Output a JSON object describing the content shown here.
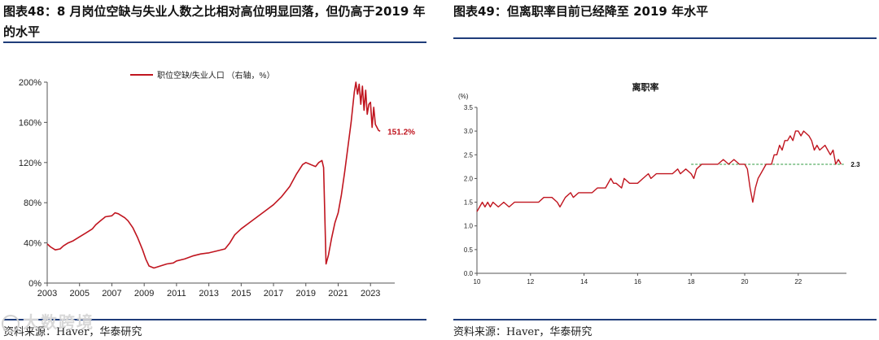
{
  "left": {
    "title_prefix": "图表48：",
    "title_text": "8 月岗位空缺与失业人数之比相对高位明显回落，但仍高于2019 年的水平",
    "source": "资料来源：Haver，华泰研究",
    "chart_data": {
      "type": "line",
      "legend": [
        "职位空缺/失业人口 （右轴，%）"
      ],
      "x_ticks": [
        "2003",
        "2005",
        "2007",
        "2009",
        "2011",
        "2013",
        "2015",
        "2017",
        "2019",
        "2021",
        "2023"
      ],
      "y_ticks": [
        "0%",
        "40%",
        "80%",
        "120%",
        "160%",
        "200%"
      ],
      "ylim": [
        0,
        200
      ],
      "xlim": [
        2003,
        2024.5
      ],
      "end_label": "151.2%",
      "series": [
        {
          "name": "职位空缺/失业人口 （右轴，%）",
          "color": "#c0151f",
          "points": [
            [
              2003.0,
              39
            ],
            [
              2003.2,
              36
            ],
            [
              2003.5,
              33
            ],
            [
              2003.8,
              34
            ],
            [
              2004.0,
              37
            ],
            [
              2004.3,
              40
            ],
            [
              2004.6,
              42
            ],
            [
              2005.0,
              46
            ],
            [
              2005.4,
              50
            ],
            [
              2005.8,
              54
            ],
            [
              2006.0,
              58
            ],
            [
              2006.3,
              62
            ],
            [
              2006.6,
              66
            ],
            [
              2007.0,
              67
            ],
            [
              2007.2,
              70
            ],
            [
              2007.4,
              69
            ],
            [
              2007.6,
              67
            ],
            [
              2007.8,
              65
            ],
            [
              2008.0,
              62
            ],
            [
              2008.3,
              55
            ],
            [
              2008.6,
              45
            ],
            [
              2008.9,
              33
            ],
            [
              2009.1,
              24
            ],
            [
              2009.3,
              17
            ],
            [
              2009.6,
              15
            ],
            [
              2010.0,
              17
            ],
            [
              2010.4,
              19
            ],
            [
              2010.8,
              20
            ],
            [
              2011.0,
              22
            ],
            [
              2011.5,
              24
            ],
            [
              2012.0,
              27
            ],
            [
              2012.5,
              29
            ],
            [
              2013.0,
              30
            ],
            [
              2013.5,
              32
            ],
            [
              2014.0,
              34
            ],
            [
              2014.3,
              40
            ],
            [
              2014.6,
              48
            ],
            [
              2015.0,
              54
            ],
            [
              2015.5,
              60
            ],
            [
              2016.0,
              66
            ],
            [
              2016.5,
              72
            ],
            [
              2017.0,
              78
            ],
            [
              2017.5,
              86
            ],
            [
              2018.0,
              96
            ],
            [
              2018.4,
              108
            ],
            [
              2018.8,
              118
            ],
            [
              2019.0,
              120
            ],
            [
              2019.3,
              118
            ],
            [
              2019.6,
              116
            ],
            [
              2019.8,
              120
            ],
            [
              2020.0,
              122
            ],
            [
              2020.1,
              115
            ],
            [
              2020.25,
              19
            ],
            [
              2020.4,
              28
            ],
            [
              2020.6,
              45
            ],
            [
              2020.8,
              60
            ],
            [
              2021.0,
              70
            ],
            [
              2021.2,
              88
            ],
            [
              2021.4,
              110
            ],
            [
              2021.6,
              135
            ],
            [
              2021.8,
              160
            ],
            [
              2022.0,
              190
            ],
            [
              2022.1,
              200
            ],
            [
              2022.2,
              188
            ],
            [
              2022.3,
              198
            ],
            [
              2022.4,
              178
            ],
            [
              2022.5,
              196
            ],
            [
              2022.6,
              172
            ],
            [
              2022.7,
              192
            ],
            [
              2022.8,
              168
            ],
            [
              2022.9,
              178
            ],
            [
              2023.0,
              180
            ],
            [
              2023.1,
              155
            ],
            [
              2023.2,
              175
            ],
            [
              2023.3,
              158
            ],
            [
              2023.5,
              152
            ],
            [
              2023.6,
              151.2
            ]
          ]
        }
      ]
    }
  },
  "right": {
    "title_prefix": "图表49：",
    "title_text": "但离职率目前已经降至 2019 年水平",
    "source": "资料来源：Haver，华泰研究",
    "chart_data": {
      "type": "line",
      "title": "离职率",
      "y_unit": "(%)",
      "x_ticks": [
        "10",
        "12",
        "14",
        "16",
        "18",
        "20",
        "22"
      ],
      "y_ticks": [
        "0.0",
        "0.5",
        "1.0",
        "1.5",
        "2.0",
        "2.5",
        "3.0",
        "3.5"
      ],
      "ylim": [
        0,
        3.5
      ],
      "xlim": [
        10,
        23.8
      ],
      "end_label": "2.3",
      "reference_line": 2.3,
      "series": [
        {
          "name": "离职率",
          "color": "#c0151f",
          "points": [
            [
              10.0,
              1.3
            ],
            [
              10.1,
              1.4
            ],
            [
              10.2,
              1.5
            ],
            [
              10.3,
              1.4
            ],
            [
              10.4,
              1.5
            ],
            [
              10.5,
              1.4
            ],
            [
              10.6,
              1.5
            ],
            [
              10.8,
              1.4
            ],
            [
              11.0,
              1.5
            ],
            [
              11.2,
              1.4
            ],
            [
              11.4,
              1.5
            ],
            [
              11.6,
              1.5
            ],
            [
              12.0,
              1.5
            ],
            [
              12.3,
              1.5
            ],
            [
              12.5,
              1.6
            ],
            [
              12.8,
              1.6
            ],
            [
              13.0,
              1.5
            ],
            [
              13.1,
              1.4
            ],
            [
              13.3,
              1.6
            ],
            [
              13.5,
              1.7
            ],
            [
              13.6,
              1.6
            ],
            [
              13.8,
              1.7
            ],
            [
              14.0,
              1.7
            ],
            [
              14.3,
              1.7
            ],
            [
              14.5,
              1.8
            ],
            [
              14.8,
              1.8
            ],
            [
              15.0,
              2.0
            ],
            [
              15.1,
              1.9
            ],
            [
              15.2,
              1.9
            ],
            [
              15.4,
              1.8
            ],
            [
              15.5,
              2.0
            ],
            [
              15.7,
              1.9
            ],
            [
              16.0,
              1.9
            ],
            [
              16.2,
              2.0
            ],
            [
              16.4,
              2.1
            ],
            [
              16.5,
              2.0
            ],
            [
              16.7,
              2.1
            ],
            [
              17.0,
              2.1
            ],
            [
              17.3,
              2.1
            ],
            [
              17.5,
              2.2
            ],
            [
              17.6,
              2.1
            ],
            [
              17.8,
              2.2
            ],
            [
              18.0,
              2.1
            ],
            [
              18.1,
              2.0
            ],
            [
              18.2,
              2.2
            ],
            [
              18.4,
              2.3
            ],
            [
              18.7,
              2.3
            ],
            [
              19.0,
              2.3
            ],
            [
              19.2,
              2.4
            ],
            [
              19.4,
              2.3
            ],
            [
              19.6,
              2.4
            ],
            [
              19.8,
              2.3
            ],
            [
              20.0,
              2.3
            ],
            [
              20.1,
              2.2
            ],
            [
              20.2,
              1.8
            ],
            [
              20.3,
              1.5
            ],
            [
              20.4,
              1.8
            ],
            [
              20.5,
              2.0
            ],
            [
              20.6,
              2.1
            ],
            [
              20.8,
              2.3
            ],
            [
              21.0,
              2.3
            ],
            [
              21.1,
              2.5
            ],
            [
              21.2,
              2.5
            ],
            [
              21.3,
              2.7
            ],
            [
              21.4,
              2.6
            ],
            [
              21.5,
              2.8
            ],
            [
              21.6,
              2.8
            ],
            [
              21.7,
              2.9
            ],
            [
              21.8,
              2.8
            ],
            [
              21.9,
              3.0
            ],
            [
              22.0,
              3.0
            ],
            [
              22.1,
              2.9
            ],
            [
              22.2,
              3.0
            ],
            [
              22.4,
              2.9
            ],
            [
              22.5,
              2.8
            ],
            [
              22.6,
              2.6
            ],
            [
              22.7,
              2.7
            ],
            [
              22.8,
              2.6
            ],
            [
              23.0,
              2.7
            ],
            [
              23.1,
              2.6
            ],
            [
              23.2,
              2.5
            ],
            [
              23.3,
              2.6
            ],
            [
              23.4,
              2.3
            ],
            [
              23.5,
              2.4
            ],
            [
              23.6,
              2.3
            ]
          ]
        }
      ]
    }
  },
  "watermark": "大数跨境"
}
